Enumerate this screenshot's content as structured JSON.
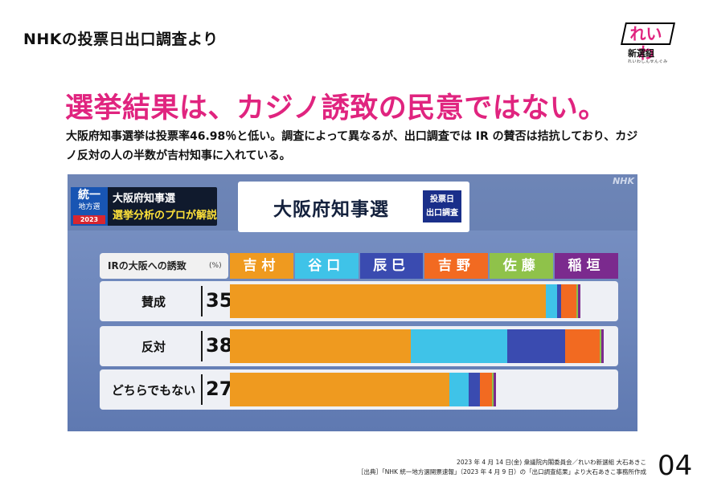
{
  "header": {
    "title": "NHKの投票日出口調査より"
  },
  "logo": {
    "mark": "れいわ",
    "sub": "新選組",
    "tiny": "れいわしんせんぐみ"
  },
  "headline": "選挙結果は、カジノ誘致の民意ではない。",
  "description": "大阪府知事選挙は投票率46.98％と低い。調査によって異なるが、出口調査では IR の賛否は拮抗しており、カジノ反対の人の半数が吉村知事に入れている。",
  "screen": {
    "badge": {
      "line1": "統一",
      "line2": "地方選",
      "year": "2023",
      "right1": "大阪府知事選",
      "right2": "選挙分析のプロが解説"
    },
    "title": "大阪府知事選",
    "exit_badge": {
      "line1": "投票日",
      "line2": "出口調査"
    },
    "nhk": "NHK"
  },
  "chart_data": {
    "type": "bar",
    "orientation": "horizontal-stacked",
    "title": "大阪府知事選",
    "question": "IRの大阪への誘致",
    "unit": "(%)",
    "categories": [
      "賛成",
      "反対",
      "どちらでもない"
    ],
    "category_shares": [
      35,
      38,
      27
    ],
    "candidates": [
      {
        "name": "吉村",
        "color": "#ef9a1f"
      },
      {
        "name": "谷口",
        "color": "#3fc3e8"
      },
      {
        "name": "辰巳",
        "color": "#3a4bb0"
      },
      {
        "name": "吉野",
        "color": "#f26a21"
      },
      {
        "name": "佐藤",
        "color": "#8fc24a"
      },
      {
        "name": "稲垣",
        "color": "#7b2a8e"
      }
    ],
    "series": [
      {
        "name": "吉村",
        "values": [
          82,
          47,
          57
        ]
      },
      {
        "name": "谷口",
        "values": [
          3,
          25,
          5
        ]
      },
      {
        "name": "辰巳",
        "values": [
          1,
          15,
          3
        ]
      },
      {
        "name": "吉野",
        "values": [
          4,
          9,
          3
        ]
      },
      {
        "name": "佐藤",
        "values": [
          0.5,
          0.4,
          0.5
        ]
      },
      {
        "name": "稲垣",
        "values": [
          0.5,
          0.6,
          0.5
        ]
      }
    ],
    "xlim": [
      0,
      100
    ]
  },
  "footer": {
    "line1": "2023 年 4 月 14 日(金) 衆議院内閣委員会／れいわ新選組 大石あきこ",
    "line2": "［出典］「NHK 統一地方選開票速報」（2023 年 4 月 9 日）の「出口調査結果」より大石あきこ事務所作成",
    "page": "04"
  }
}
